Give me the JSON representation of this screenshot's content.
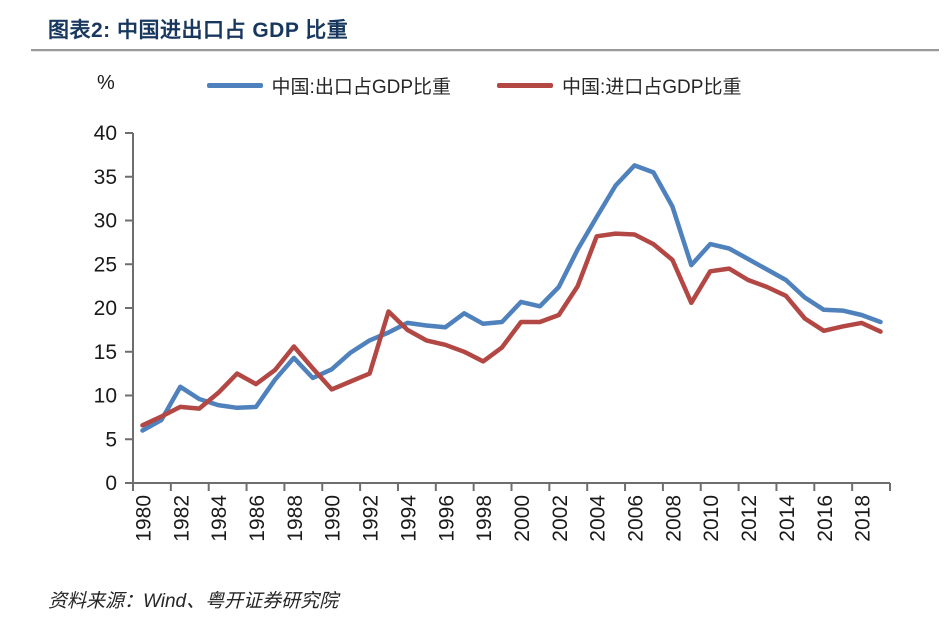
{
  "page": {
    "title": "图表2: 中国进出口占 GDP 比重",
    "source": "资料来源：Wind、粤开证券研究院"
  },
  "chart_data": {
    "type": "line",
    "title": "中国进出口占 GDP 比重",
    "unit_label": "%",
    "grid": false,
    "legend_position": "top",
    "ylim": [
      0,
      40
    ],
    "y_ticks": [
      0,
      5,
      10,
      15,
      20,
      25,
      30,
      35,
      40
    ],
    "x": [
      1980,
      1981,
      1982,
      1983,
      1984,
      1985,
      1986,
      1987,
      1988,
      1989,
      1990,
      1991,
      1992,
      1993,
      1994,
      1995,
      1996,
      1997,
      1998,
      1999,
      2000,
      2001,
      2002,
      2003,
      2004,
      2005,
      2006,
      2007,
      2008,
      2009,
      2010,
      2011,
      2012,
      2013,
      2014,
      2015,
      2016,
      2017,
      2018,
      2019
    ],
    "x_tick_labels": [
      "1980",
      "1982",
      "1984",
      "1986",
      "1988",
      "1990",
      "1992",
      "1994",
      "1996",
      "1998",
      "2000",
      "2002",
      "2004",
      "2006",
      "2008",
      "2010",
      "2012",
      "2014",
      "2016",
      "2018"
    ],
    "series": [
      {
        "name": "中国:出口占GDP比重",
        "color": "#4f81bd",
        "values": [
          6.0,
          7.2,
          11.0,
          9.6,
          8.9,
          8.6,
          8.7,
          11.8,
          14.3,
          12.0,
          13.0,
          14.9,
          16.3,
          17.2,
          18.3,
          18.0,
          17.8,
          19.4,
          18.2,
          18.4,
          20.7,
          20.2,
          22.4,
          26.7,
          30.4,
          34.0,
          36.3,
          35.5,
          31.6,
          24.9,
          27.3,
          26.8,
          25.6,
          24.4,
          23.2,
          21.2,
          19.8,
          19.7,
          19.2,
          18.4
        ]
      },
      {
        "name": "中国:进口占GDP比重",
        "color": "#b24744",
        "values": [
          6.6,
          7.6,
          8.7,
          8.5,
          10.3,
          12.5,
          11.3,
          12.9,
          15.6,
          13.1,
          10.7,
          11.6,
          12.5,
          19.6,
          17.5,
          16.3,
          15.8,
          15.0,
          13.9,
          15.5,
          18.4,
          18.4,
          19.2,
          22.5,
          28.2,
          28.5,
          28.4,
          27.3,
          25.5,
          20.6,
          24.2,
          24.5,
          23.2,
          22.4,
          21.4,
          18.8,
          17.4,
          17.9,
          18.3,
          17.3
        ]
      }
    ]
  }
}
